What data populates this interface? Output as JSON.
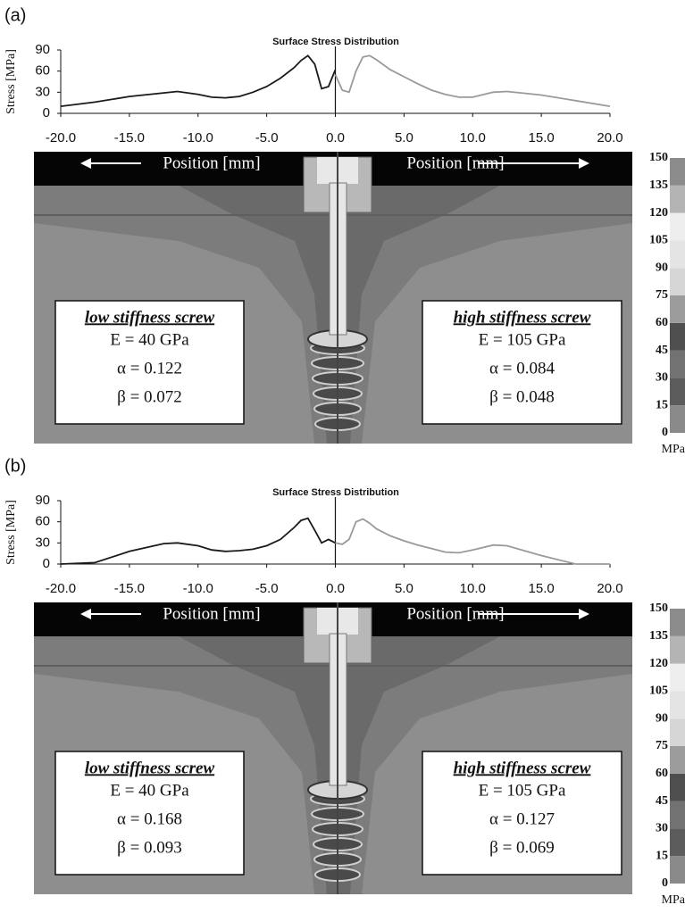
{
  "chart_data": [
    {
      "type": "line",
      "panel_label": "(a)",
      "title": "Surface Stress Distribution",
      "y_label": "Stress [MPa]",
      "x": [
        -20,
        -17.5,
        -15,
        -12.5,
        -11.5,
        -10,
        -9,
        -8,
        -7,
        -6,
        -5,
        -4,
        -3,
        -2.5,
        -2,
        -1.5,
        -1,
        -0.5,
        0,
        0.5,
        1,
        1.5,
        2,
        2.5,
        3,
        4,
        5,
        6,
        7,
        8,
        9,
        10,
        11.5,
        12.5,
        15,
        17.5,
        20
      ],
      "series": [
        {
          "name": "low stiffness screw",
          "color": "#1a1a1a",
          "values": [
            10,
            16,
            24,
            29,
            31,
            27,
            23,
            22,
            24,
            30,
            38,
            50,
            65,
            75,
            82,
            70,
            35,
            38,
            62,
            null,
            null,
            null,
            null,
            null,
            null,
            null,
            null,
            null,
            null,
            null,
            null,
            null,
            null,
            null,
            null,
            null,
            null
          ]
        },
        {
          "name": "high stiffness screw",
          "color": "#9a9a9a",
          "values": [
            null,
            null,
            null,
            null,
            null,
            null,
            null,
            null,
            null,
            null,
            null,
            null,
            null,
            null,
            null,
            null,
            null,
            null,
            55,
            33,
            30,
            60,
            80,
            82,
            76,
            62,
            52,
            42,
            33,
            27,
            23,
            23,
            30,
            31,
            26,
            18,
            10
          ]
        }
      ],
      "xlim": [
        -20,
        20
      ],
      "ylim": [
        0,
        90
      ],
      "xticks": [
        {
          "value": -20,
          "label": "-20.0"
        },
        {
          "value": -15,
          "label": "-15.0"
        },
        {
          "value": -10,
          "label": "-10.0"
        },
        {
          "value": -5,
          "label": "-5.0"
        },
        {
          "value": 0,
          "label": "0.0"
        },
        {
          "value": 5,
          "label": "5.0"
        },
        {
          "value": 10,
          "label": "10.0"
        },
        {
          "value": 15,
          "label": "15.0"
        },
        {
          "value": 20,
          "label": "20.0"
        }
      ],
      "yticks": [
        0,
        30,
        60,
        90
      ],
      "position_left": "Position [mm]",
      "position_right": "Position [mm]",
      "low_box": {
        "title": "low stiffness screw",
        "lines": [
          "E = 40 GPa",
          "α = 0.122",
          "β = 0.072"
        ]
      },
      "high_box": {
        "title": "high stiffness screw",
        "lines": [
          "E = 105 GPa",
          "α = 0.084",
          "β = 0.048"
        ]
      },
      "colorbar": {
        "ticks": [
          0,
          15,
          30,
          45,
          60,
          75,
          90,
          105,
          120,
          135,
          150
        ],
        "unit": "MPa",
        "colors": [
          "#8a8a8a",
          "#5c5c5c",
          "#727272",
          "#4e4e4e",
          "#9c9c9c",
          "#d6d6d6",
          "#e4e4e4",
          "#eeeeee",
          "#b4b4b4",
          "#8c8c8c"
        ]
      }
    },
    {
      "type": "line",
      "panel_label": "(b)",
      "title": "Surface Stress Distribution",
      "y_label": "Stress [MPa]",
      "x": [
        -20,
        -17.5,
        -15,
        -12.5,
        -11.5,
        -10,
        -9,
        -8,
        -7,
        -6,
        -5,
        -4,
        -3,
        -2.5,
        -2,
        -1.5,
        -1,
        -0.5,
        0,
        0.5,
        1,
        1.5,
        2,
        2.5,
        3,
        4,
        5,
        6,
        7,
        8,
        9,
        10,
        11.5,
        12.5,
        15,
        17.5,
        20
      ],
      "series": [
        {
          "name": "low stiffness screw",
          "color": "#1a1a1a",
          "values": [
            0,
            2,
            18,
            29,
            30,
            26,
            20,
            18,
            19,
            21,
            26,
            35,
            52,
            62,
            65,
            48,
            30,
            35,
            30,
            null,
            null,
            null,
            null,
            null,
            null,
            null,
            null,
            null,
            null,
            null,
            null,
            null,
            null,
            null,
            null,
            null,
            null
          ]
        },
        {
          "name": "high stiffness screw",
          "color": "#9a9a9a",
          "values": [
            null,
            null,
            null,
            null,
            null,
            null,
            null,
            null,
            null,
            null,
            null,
            null,
            null,
            null,
            null,
            null,
            null,
            null,
            30,
            28,
            35,
            60,
            64,
            58,
            50,
            40,
            33,
            27,
            22,
            17,
            16,
            20,
            27,
            26,
            12,
            0,
            0
          ]
        }
      ],
      "xlim": [
        -20,
        20
      ],
      "ylim": [
        0,
        90
      ],
      "xticks": [
        {
          "value": -20,
          "label": "-20.0"
        },
        {
          "value": -15,
          "label": "-15.0"
        },
        {
          "value": -10,
          "label": "-10.0"
        },
        {
          "value": -5,
          "label": "-5.0"
        },
        {
          "value": 0,
          "label": "0.0"
        },
        {
          "value": 5,
          "label": "5.0"
        },
        {
          "value": 10,
          "label": "10.0"
        },
        {
          "value": 15,
          "label": "15.0"
        },
        {
          "value": 20,
          "label": "20.0"
        }
      ],
      "yticks": [
        0,
        30,
        60,
        90
      ],
      "position_left": "Position [mm]",
      "position_right": "Position [mm]",
      "low_box": {
        "title": "low stiffness screw",
        "lines": [
          "E = 40 GPa",
          "α = 0.168",
          "β = 0.093"
        ]
      },
      "high_box": {
        "title": "high stiffness screw",
        "lines": [
          "E = 105 GPa",
          "α = 0.127",
          "β = 0.069"
        ]
      },
      "colorbar": {
        "ticks": [
          0,
          15,
          30,
          45,
          60,
          75,
          90,
          105,
          120,
          135,
          150
        ],
        "unit": "MPa",
        "colors": [
          "#8a8a8a",
          "#5c5c5c",
          "#727272",
          "#4e4e4e",
          "#9c9c9c",
          "#d6d6d6",
          "#e4e4e4",
          "#eeeeee",
          "#b4b4b4",
          "#8c8c8c"
        ]
      }
    }
  ]
}
